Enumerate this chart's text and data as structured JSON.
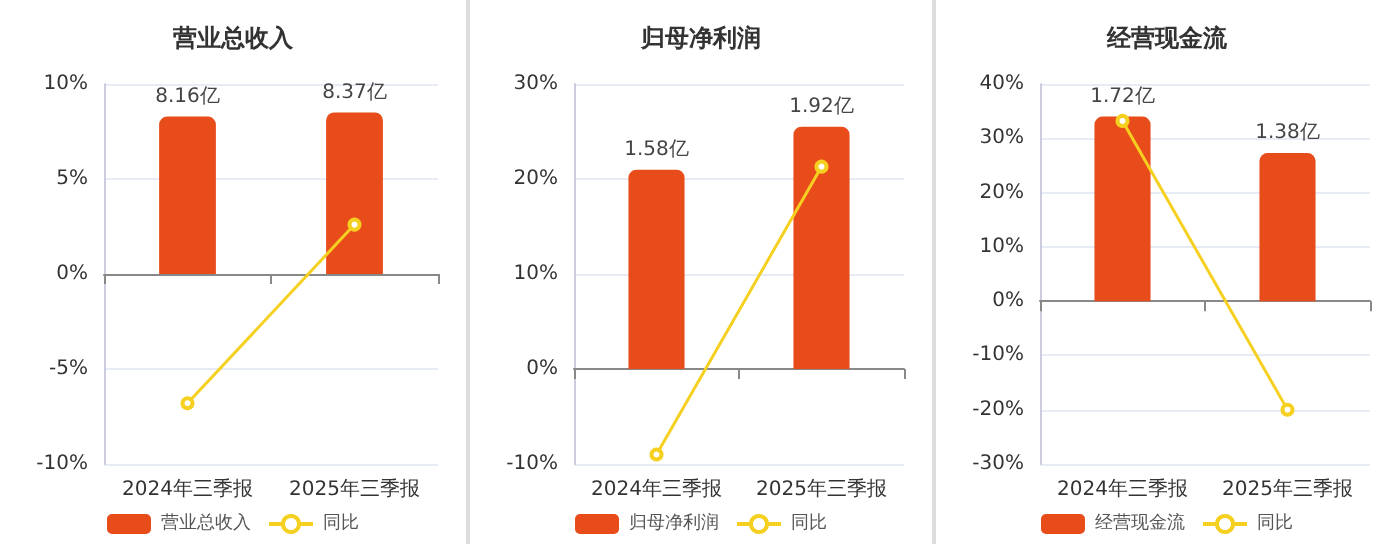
{
  "chart_data": [
    {
      "type": "bar",
      "title": "营业总收入",
      "categories": [
        "2024年三季报",
        "2025年三季报"
      ],
      "series": [
        {
          "name": "营业总收入",
          "color": "#e84c1a",
          "axis": "y2",
          "values": [
            8.16,
            8.37
          ],
          "value_labels": [
            "8.16亿",
            "8.37亿"
          ]
        },
        {
          "type": "line",
          "name": "同比",
          "color": "#f5d020",
          "values": [
            -6.8,
            2.6
          ],
          "marker": "circle"
        }
      ],
      "ylim": [
        -10,
        10
      ],
      "yticks": [
        {
          "value": -10,
          "label": "-10%"
        },
        {
          "value": -5,
          "label": "-5%"
        },
        {
          "value": 0,
          "label": "0%"
        },
        {
          "value": 5,
          "label": "5%"
        },
        {
          "value": 10,
          "label": "10%"
        }
      ],
      "grid": "y",
      "legend": "bottom"
    },
    {
      "type": "bar",
      "title": "归母净利润",
      "categories": [
        "2024年三季报",
        "2025年三季报"
      ],
      "series": [
        {
          "name": "归母净利润",
          "color": "#e84c1a",
          "axis": "y2",
          "values": [
            1.58,
            1.92
          ],
          "value_labels": [
            "1.58亿",
            "1.92亿"
          ]
        },
        {
          "type": "line",
          "name": "同比",
          "color": "#f5d020",
          "values": [
            -9,
            21.3
          ],
          "marker": "circle"
        }
      ],
      "ylim": [
        -10,
        30
      ],
      "yticks": [
        {
          "value": -10,
          "label": "-10%"
        },
        {
          "value": 0,
          "label": "0%"
        },
        {
          "value": 10,
          "label": "10%"
        },
        {
          "value": 20,
          "label": "20%"
        },
        {
          "value": 30,
          "label": "30%"
        }
      ],
      "grid": "y",
      "legend": "bottom"
    },
    {
      "type": "bar",
      "title": "经营现金流",
      "categories": [
        "2024年三季报",
        "2025年三季报"
      ],
      "series": [
        {
          "name": "经营现金流",
          "color": "#e84c1a",
          "axis": "y2",
          "values": [
            1.72,
            1.38
          ],
          "value_labels": [
            "1.72亿",
            "1.38亿"
          ]
        },
        {
          "type": "line",
          "name": "同比",
          "color": "#f5d020",
          "values": [
            33.2,
            -20
          ],
          "marker": "circle"
        }
      ],
      "ylim": [
        -30,
        40
      ],
      "yticks": [
        {
          "value": -30,
          "label": "-30%"
        },
        {
          "value": -20,
          "label": "-20%"
        },
        {
          "value": -10,
          "label": "-10%"
        },
        {
          "value": 0,
          "label": "0%"
        },
        {
          "value": 10,
          "label": "10%"
        },
        {
          "value": 20,
          "label": "20%"
        },
        {
          "value": 30,
          "label": "30%"
        },
        {
          "value": 40,
          "label": "40%"
        }
      ],
      "grid": "y",
      "legend": "bottom"
    }
  ]
}
